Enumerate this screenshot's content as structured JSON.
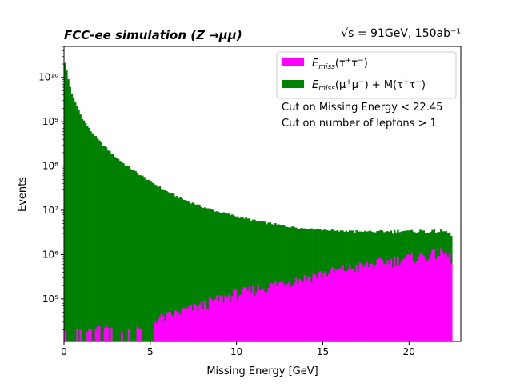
{
  "chart_data": {
    "type": "bar",
    "title_left": "FCC-ee simulation (Z →μμ)",
    "title_right": "√s = 91GeV, 150ab⁻¹",
    "xlabel": "Missing Energy [GeV]",
    "ylabel": "Events",
    "xlim": [
      0,
      23
    ],
    "ylim": [
      11000,
      50000000000
    ],
    "yscale": "log",
    "xticks": [
      0,
      5,
      10,
      15,
      20
    ],
    "yticks": [
      {
        "value": 100000,
        "label": "10⁵"
      },
      {
        "value": 1000000,
        "label": "10⁶"
      },
      {
        "value": 10000000,
        "label": "10⁷"
      },
      {
        "value": 100000000,
        "label": "10⁸"
      },
      {
        "value": 1000000000,
        "label": "10⁹"
      },
      {
        "value": 10000000000,
        "label": "10¹⁰"
      }
    ],
    "bin_width": 0.1,
    "x_max": 22.5,
    "grid": false,
    "legend_position": "top-right",
    "annotations": [
      "Cut on Missing Energy < 22.45",
      "Cut on number of leptons > 1"
    ],
    "series": [
      {
        "name": "E_miss(τ⁺τ⁻)",
        "color": "#ff00ff",
        "stack_order": "top",
        "x": [
          1.3,
          2.8,
          3.4,
          4.1,
          4.6,
          5.3,
          6.0,
          7.0,
          8.0,
          9.0,
          10.0,
          11.0,
          12.0,
          13.0,
          14.0,
          15.0,
          16.0,
          17.0,
          18.0,
          19.0,
          20.0,
          21.0,
          22.0,
          22.5
        ],
        "values": [
          20000,
          22000,
          20000,
          22000,
          22000,
          35000,
          40000,
          55000,
          70000,
          100000,
          130000,
          160000,
          200000,
          250000,
          300000,
          380000,
          450000,
          520000,
          620000,
          720000,
          850000,
          950000,
          1100000,
          800000
        ]
      },
      {
        "name": "E_miss(μ⁺μ⁻) + M(τ⁺τ⁻)",
        "color": "#008000",
        "stack_order": "bottom",
        "x": [
          0.0,
          0.05,
          0.2,
          0.4,
          0.6,
          0.8,
          1.0,
          1.5,
          2.0,
          2.5,
          3.0,
          3.5,
          4.0,
          5.0,
          6.0,
          7.0,
          8.0,
          9.0,
          10.0,
          11.0,
          12.0,
          13.0,
          14.0,
          15.0,
          16.0,
          17.0,
          18.0,
          19.0,
          20.0,
          21.0,
          22.0,
          22.5
        ],
        "values": [
          25000000000,
          22000000000,
          11000000000,
          5000000000,
          3000000000,
          2000000000,
          1300000000,
          650000000,
          380000000,
          240000000,
          160000000,
          110000000,
          80000000,
          45000000,
          26000000,
          17000000,
          12000000,
          9000000,
          7200000,
          5800000,
          4800000,
          4100000,
          3600000,
          3300000,
          3000000,
          2800000,
          2700000,
          2600000,
          2500000,
          2400000,
          2300000,
          1900000
        ]
      }
    ]
  }
}
